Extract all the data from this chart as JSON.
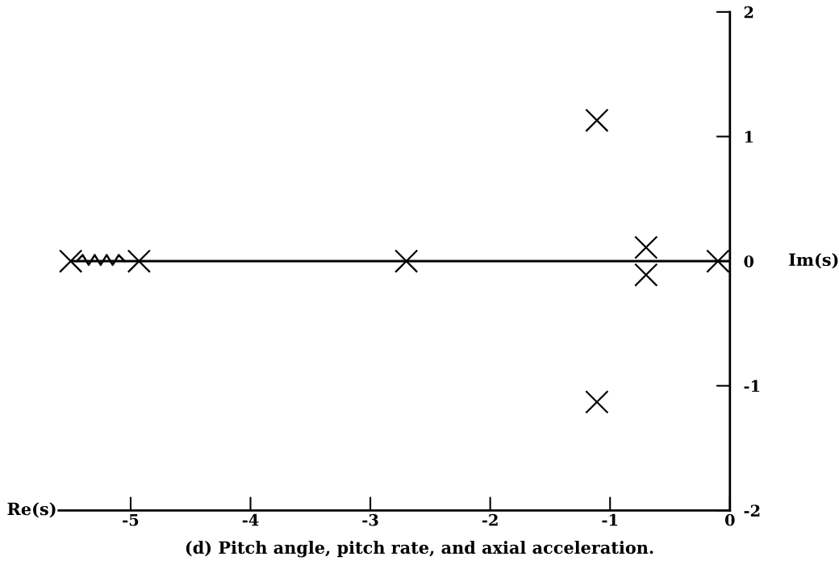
{
  "chart_data": {
    "type": "scatter",
    "xlabel": "Re(s)",
    "ylabel": "Im(s)",
    "annotations": [
      "(d) Pitch angle, pitch rate, and axial acceleration."
    ],
    "xlim": [
      -5.6,
      0
    ],
    "xticks": [
      -5,
      -4,
      -3,
      -2,
      -1,
      0
    ],
    "ylim": [
      -2,
      2
    ],
    "yticks": [
      -2,
      -1,
      0,
      1,
      2
    ],
    "grid": false,
    "legend": false,
    "series": [
      {
        "type": "line",
        "color": "#000000",
        "line_style": "solid",
        "x": [
          -5.5,
          0
        ],
        "values": [
          0,
          0
        ]
      },
      {
        "color": "#000000",
        "marker": "cross",
        "x": [
          -5.5,
          -4.93,
          -2.7,
          -1.11,
          -1.11,
          -0.7,
          -0.7,
          -0.1
        ],
        "values": [
          0,
          0,
          0,
          1.13,
          -1.13,
          0.11,
          -0.11,
          0
        ]
      }
    ]
  }
}
